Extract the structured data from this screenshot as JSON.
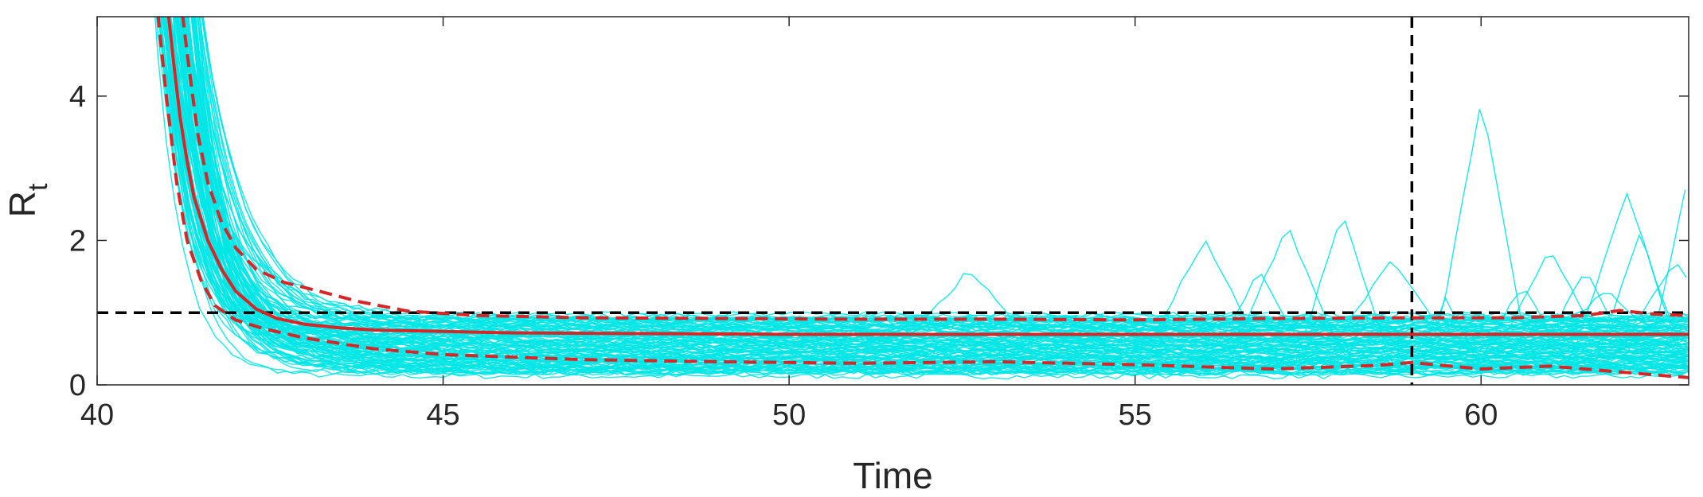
{
  "chart_data": {
    "type": "line",
    "title": "",
    "xlabel": "Time",
    "ylabel": "R",
    "ylabel_subscript": "t",
    "xlim": [
      40,
      63
    ],
    "ylim": [
      0,
      5.1
    ],
    "xticks": [
      40,
      45,
      50,
      55,
      60
    ],
    "xtick_labels": [
      "40",
      "45",
      "50",
      "55",
      "60"
    ],
    "yticks": [
      0,
      2,
      4
    ],
    "ytick_labels": [
      "0",
      "2",
      "4"
    ],
    "grid": false,
    "legend": "none",
    "reference_lines": [
      {
        "orientation": "horizontal",
        "value": 1,
        "style": "dashed",
        "color": "#000000"
      },
      {
        "orientation": "vertical",
        "value": 59,
        "style": "dashed",
        "color": "#000000"
      }
    ],
    "colors": {
      "samples": "#00E5E5",
      "mean": "#D62728",
      "bounds": "#D62728",
      "axis": "#262626"
    },
    "series": [
      {
        "style": "solid",
        "color": "#D62728",
        "x": [
          41.0,
          41.1,
          41.2,
          41.3,
          41.4,
          41.6,
          41.8,
          42.0,
          42.3,
          42.6,
          43.0,
          43.5,
          44.0,
          45.0,
          46.0,
          48.0,
          50.0,
          52.0,
          54.0,
          56.0,
          58.0,
          60.0,
          62.0,
          63.0
        ],
        "values": [
          5.4,
          4.5,
          3.7,
          3.1,
          2.6,
          2.0,
          1.6,
          1.3,
          1.05,
          0.92,
          0.84,
          0.79,
          0.76,
          0.74,
          0.72,
          0.71,
          0.7,
          0.7,
          0.7,
          0.7,
          0.7,
          0.7,
          0.7,
          0.7
        ]
      },
      {
        "style": "dashed",
        "color": "#D62728",
        "x": [
          41.2,
          41.3,
          41.45,
          41.6,
          41.8,
          42.0,
          42.3,
          42.7,
          43.2,
          43.8,
          44.5,
          45.5,
          47.0,
          49.0,
          51.0,
          53.0,
          55.0,
          57.0,
          59.0,
          60.5,
          61.5,
          62.0,
          62.5,
          63.0
        ],
        "values": [
          5.4,
          4.6,
          3.5,
          2.8,
          2.25,
          1.9,
          1.6,
          1.42,
          1.3,
          1.15,
          1.02,
          0.96,
          0.93,
          0.92,
          0.91,
          0.91,
          0.9,
          0.92,
          0.93,
          0.93,
          0.96,
          1.03,
          0.98,
          0.96
        ]
      },
      {
        "style": "dashed",
        "color": "#D62728",
        "x": [
          40.85,
          41.0,
          41.15,
          41.3,
          41.5,
          41.7,
          42.0,
          42.4,
          43.0,
          44.0,
          45.0,
          47.0,
          49.0,
          51.0,
          53.0,
          55.0,
          57.0,
          58.5,
          59.0,
          60.0,
          61.0,
          62.0,
          63.0
        ],
        "values": [
          5.4,
          4.0,
          2.8,
          2.0,
          1.45,
          1.1,
          0.9,
          0.78,
          0.65,
          0.5,
          0.42,
          0.35,
          0.32,
          0.3,
          0.32,
          0.28,
          0.22,
          0.27,
          0.31,
          0.22,
          0.26,
          0.18,
          0.1
        ]
      }
    ]
  }
}
